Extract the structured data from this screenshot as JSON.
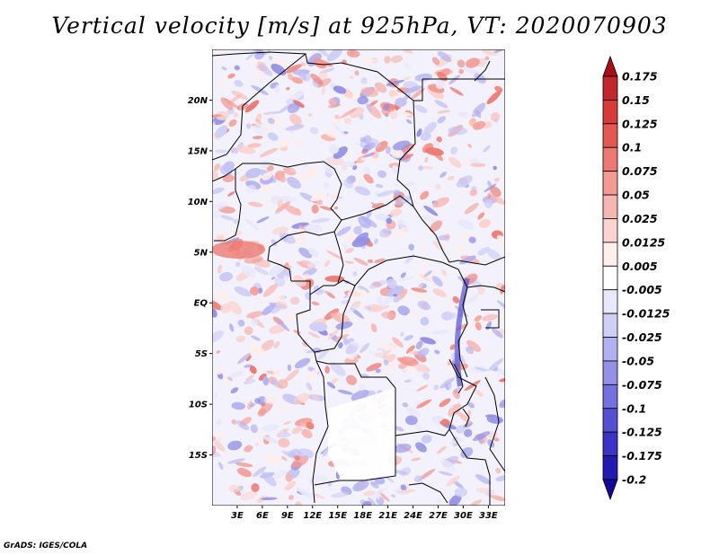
{
  "title": "Vertical velocity [m/s] at 925hPa, VT: 2020070903",
  "footer": "GrADS: IGES/COLA",
  "map": {
    "lat_labels": [
      "20N",
      "15N",
      "10N",
      "5N",
      "EQ",
      "5S",
      "10S",
      "15S"
    ],
    "lon_labels": [
      "3E",
      "6E",
      "9E",
      "12E",
      "15E",
      "18E",
      "21E",
      "24E",
      "27E",
      "30E",
      "33E"
    ],
    "lon_range_deg": [
      0,
      35
    ],
    "lat_range_deg": [
      -20,
      25
    ]
  },
  "colorbar": {
    "levels": [
      "0.175",
      "0.15",
      "0.125",
      "0.1",
      "0.075",
      "0.05",
      "0.025",
      "0.0125",
      "0.005",
      "-0.005",
      "-0.0125",
      "-0.025",
      "-0.05",
      "-0.075",
      "-0.1",
      "-0.125",
      "-0.175",
      "-0.2"
    ],
    "colors": [
      "#a50f15",
      "#c0282c",
      "#d63d3a",
      "#e35a54",
      "#ec7a72",
      "#f39a93",
      "#f7b7b1",
      "#fbd3cf",
      "#feeeec",
      "#ffffff",
      "#e8e8fb",
      "#d0cff6",
      "#b2b0ef",
      "#9390e6",
      "#7470dc",
      "#5550d2",
      "#3a33c4",
      "#241ab0",
      "#12089a"
    ]
  }
}
